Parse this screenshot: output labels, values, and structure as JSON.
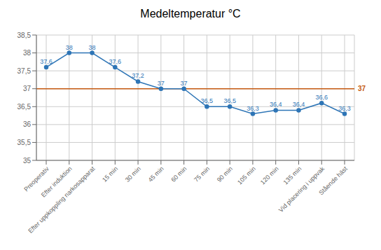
{
  "chart_data": {
    "type": "line",
    "title": "Medeltemperatur °C",
    "categories": [
      "Preoperativ",
      "Efter induktion",
      "Efter uppkoppling narkosapparat",
      "15 min",
      "30 min",
      "45 min",
      "60 min",
      "75 min",
      "90 min",
      "105 min",
      "120 min",
      "135 min",
      "Vid placering i uppvak",
      "Stående häst"
    ],
    "values": [
      37.6,
      38.0,
      38.0,
      37.6,
      37.2,
      37.0,
      37.0,
      36.5,
      36.5,
      36.3,
      36.4,
      36.4,
      36.6,
      36.3
    ],
    "value_labels": [
      "37,6",
      "38",
      "38",
      "37,6",
      "37,2",
      "37",
      "37",
      "36,5",
      "36,5",
      "36,3",
      "36,4",
      "36,4",
      "36,6",
      "36,3"
    ],
    "data_labels": true,
    "color": "#2E75B6",
    "marker": "circle",
    "ylim": [
      35.0,
      38.5
    ],
    "yticks": [
      35,
      {
        "value": 35.5,
        "label": "35,5"
      },
      36,
      {
        "value": 36.5,
        "label": "36,5"
      },
      37,
      {
        "value": 37.5,
        "label": "37,5"
      },
      38,
      {
        "value": 38.5,
        "label": "38,5"
      }
    ],
    "grid": true,
    "annotations": [
      {
        "type": "hline",
        "y": 37.0,
        "label": "37",
        "color": "#C55A11"
      }
    ]
  }
}
